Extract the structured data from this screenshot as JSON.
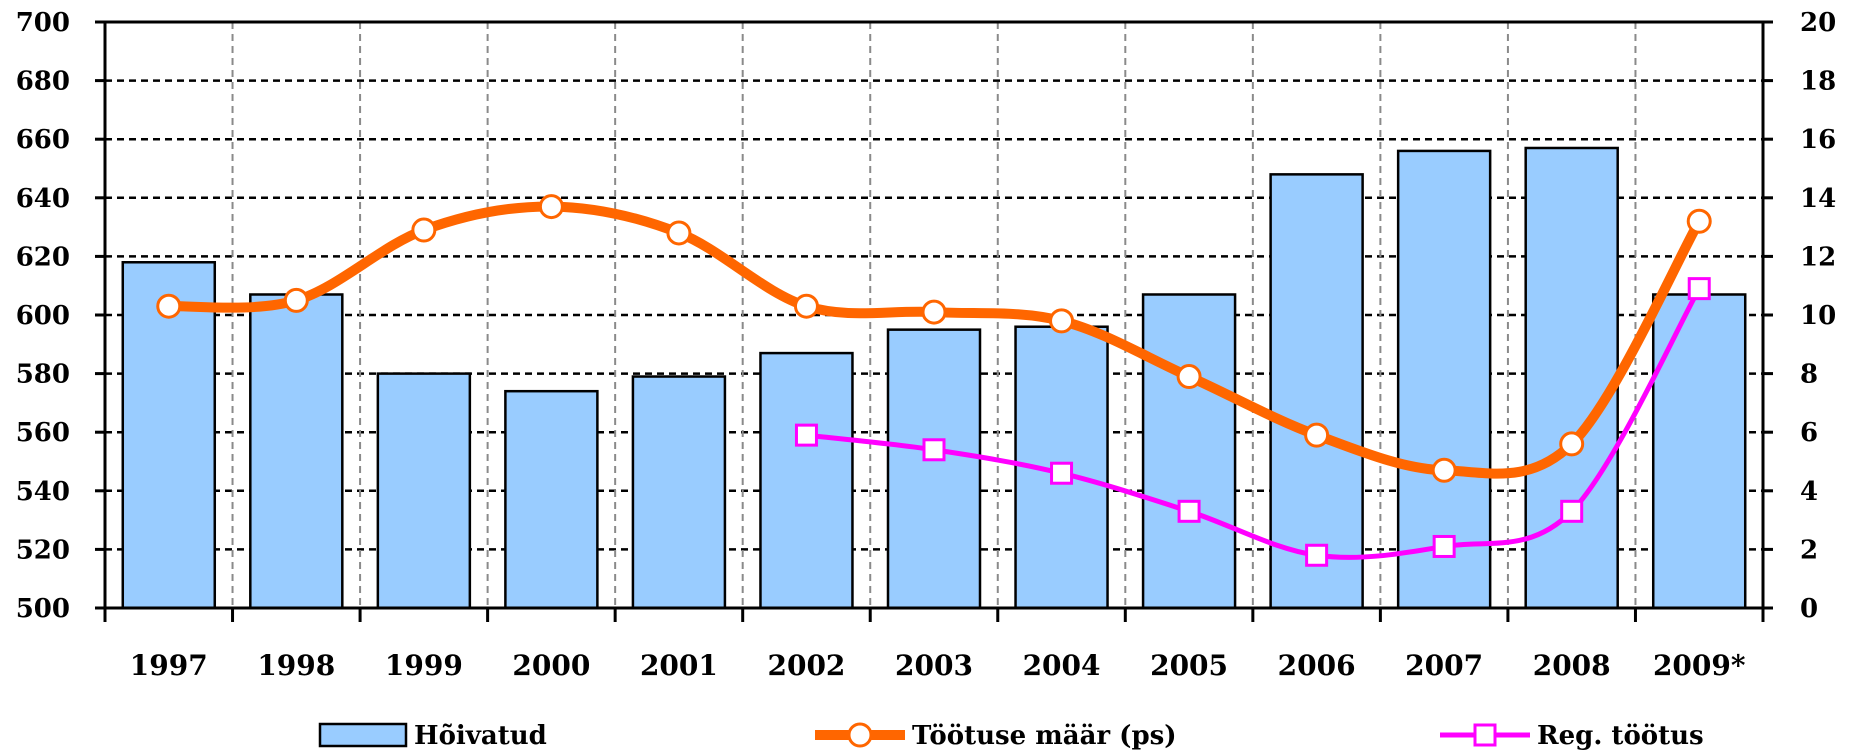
{
  "chart_data": {
    "type": "bar",
    "categories": [
      "1997",
      "1998",
      "1999",
      "2000",
      "2001",
      "2002",
      "2003",
      "2004",
      "2005",
      "2006",
      "2007",
      "2008",
      "2009*"
    ],
    "y_left": {
      "min": 500,
      "max": 700,
      "ticks": [
        500,
        520,
        540,
        560,
        580,
        600,
        620,
        640,
        660,
        680,
        700
      ]
    },
    "y_right": {
      "min": 0,
      "max": 20,
      "ticks": [
        0,
        2,
        4,
        6,
        8,
        10,
        12,
        14,
        16,
        18,
        20
      ]
    },
    "grid": true,
    "legend_position": "bottom",
    "series": [
      {
        "name": "Hõivatud",
        "type": "bar",
        "axis": "left",
        "color": "#99ccff",
        "values": [
          618,
          607,
          580,
          574,
          579,
          587,
          595,
          596,
          607,
          648,
          656,
          657,
          607
        ]
      },
      {
        "name": "Töötuse määr (ps)",
        "type": "line",
        "axis": "right",
        "color": "#ff6600",
        "marker": "circle",
        "values": [
          10.3,
          10.5,
          12.9,
          13.7,
          12.8,
          10.3,
          10.1,
          9.8,
          7.9,
          5.9,
          4.7,
          5.6,
          13.2
        ]
      },
      {
        "name": "Reg. töötus",
        "type": "line",
        "axis": "right",
        "color": "#ff00ff",
        "marker": "square",
        "values": [
          null,
          null,
          null,
          null,
          null,
          5.9,
          5.4,
          4.6,
          3.3,
          1.8,
          2.1,
          3.3,
          10.9
        ]
      }
    ]
  }
}
